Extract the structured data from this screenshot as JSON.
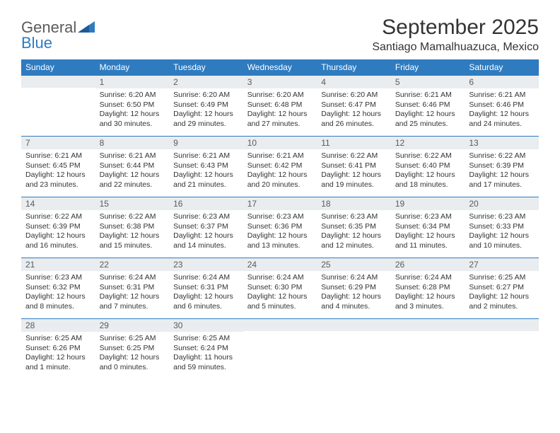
{
  "logo": {
    "word1": "General",
    "word2": "Blue"
  },
  "title": "September 2025",
  "location": "Santiago Mamalhuazuca, Mexico",
  "weekdays": [
    "Sunday",
    "Monday",
    "Tuesday",
    "Wednesday",
    "Thursday",
    "Friday",
    "Saturday"
  ],
  "colors": {
    "header_bg": "#2e7bc0",
    "header_text": "#ffffff",
    "daynum_bg": "#e9edef",
    "daynum_text": "#5a5a5a",
    "body_text": "#333333",
    "rule": "#2e7bc0"
  },
  "weeks": [
    [
      {
        "n": "",
        "sr": "",
        "ss": "",
        "dl": ""
      },
      {
        "n": "1",
        "sr": "Sunrise: 6:20 AM",
        "ss": "Sunset: 6:50 PM",
        "dl": "Daylight: 12 hours and 30 minutes."
      },
      {
        "n": "2",
        "sr": "Sunrise: 6:20 AM",
        "ss": "Sunset: 6:49 PM",
        "dl": "Daylight: 12 hours and 29 minutes."
      },
      {
        "n": "3",
        "sr": "Sunrise: 6:20 AM",
        "ss": "Sunset: 6:48 PM",
        "dl": "Daylight: 12 hours and 27 minutes."
      },
      {
        "n": "4",
        "sr": "Sunrise: 6:20 AM",
        "ss": "Sunset: 6:47 PM",
        "dl": "Daylight: 12 hours and 26 minutes."
      },
      {
        "n": "5",
        "sr": "Sunrise: 6:21 AM",
        "ss": "Sunset: 6:46 PM",
        "dl": "Daylight: 12 hours and 25 minutes."
      },
      {
        "n": "6",
        "sr": "Sunrise: 6:21 AM",
        "ss": "Sunset: 6:46 PM",
        "dl": "Daylight: 12 hours and 24 minutes."
      }
    ],
    [
      {
        "n": "7",
        "sr": "Sunrise: 6:21 AM",
        "ss": "Sunset: 6:45 PM",
        "dl": "Daylight: 12 hours and 23 minutes."
      },
      {
        "n": "8",
        "sr": "Sunrise: 6:21 AM",
        "ss": "Sunset: 6:44 PM",
        "dl": "Daylight: 12 hours and 22 minutes."
      },
      {
        "n": "9",
        "sr": "Sunrise: 6:21 AM",
        "ss": "Sunset: 6:43 PM",
        "dl": "Daylight: 12 hours and 21 minutes."
      },
      {
        "n": "10",
        "sr": "Sunrise: 6:21 AM",
        "ss": "Sunset: 6:42 PM",
        "dl": "Daylight: 12 hours and 20 minutes."
      },
      {
        "n": "11",
        "sr": "Sunrise: 6:22 AM",
        "ss": "Sunset: 6:41 PM",
        "dl": "Daylight: 12 hours and 19 minutes."
      },
      {
        "n": "12",
        "sr": "Sunrise: 6:22 AM",
        "ss": "Sunset: 6:40 PM",
        "dl": "Daylight: 12 hours and 18 minutes."
      },
      {
        "n": "13",
        "sr": "Sunrise: 6:22 AM",
        "ss": "Sunset: 6:39 PM",
        "dl": "Daylight: 12 hours and 17 minutes."
      }
    ],
    [
      {
        "n": "14",
        "sr": "Sunrise: 6:22 AM",
        "ss": "Sunset: 6:39 PM",
        "dl": "Daylight: 12 hours and 16 minutes."
      },
      {
        "n": "15",
        "sr": "Sunrise: 6:22 AM",
        "ss": "Sunset: 6:38 PM",
        "dl": "Daylight: 12 hours and 15 minutes."
      },
      {
        "n": "16",
        "sr": "Sunrise: 6:23 AM",
        "ss": "Sunset: 6:37 PM",
        "dl": "Daylight: 12 hours and 14 minutes."
      },
      {
        "n": "17",
        "sr": "Sunrise: 6:23 AM",
        "ss": "Sunset: 6:36 PM",
        "dl": "Daylight: 12 hours and 13 minutes."
      },
      {
        "n": "18",
        "sr": "Sunrise: 6:23 AM",
        "ss": "Sunset: 6:35 PM",
        "dl": "Daylight: 12 hours and 12 minutes."
      },
      {
        "n": "19",
        "sr": "Sunrise: 6:23 AM",
        "ss": "Sunset: 6:34 PM",
        "dl": "Daylight: 12 hours and 11 minutes."
      },
      {
        "n": "20",
        "sr": "Sunrise: 6:23 AM",
        "ss": "Sunset: 6:33 PM",
        "dl": "Daylight: 12 hours and 10 minutes."
      }
    ],
    [
      {
        "n": "21",
        "sr": "Sunrise: 6:23 AM",
        "ss": "Sunset: 6:32 PM",
        "dl": "Daylight: 12 hours and 8 minutes."
      },
      {
        "n": "22",
        "sr": "Sunrise: 6:24 AM",
        "ss": "Sunset: 6:31 PM",
        "dl": "Daylight: 12 hours and 7 minutes."
      },
      {
        "n": "23",
        "sr": "Sunrise: 6:24 AM",
        "ss": "Sunset: 6:31 PM",
        "dl": "Daylight: 12 hours and 6 minutes."
      },
      {
        "n": "24",
        "sr": "Sunrise: 6:24 AM",
        "ss": "Sunset: 6:30 PM",
        "dl": "Daylight: 12 hours and 5 minutes."
      },
      {
        "n": "25",
        "sr": "Sunrise: 6:24 AM",
        "ss": "Sunset: 6:29 PM",
        "dl": "Daylight: 12 hours and 4 minutes."
      },
      {
        "n": "26",
        "sr": "Sunrise: 6:24 AM",
        "ss": "Sunset: 6:28 PM",
        "dl": "Daylight: 12 hours and 3 minutes."
      },
      {
        "n": "27",
        "sr": "Sunrise: 6:25 AM",
        "ss": "Sunset: 6:27 PM",
        "dl": "Daylight: 12 hours and 2 minutes."
      }
    ],
    [
      {
        "n": "28",
        "sr": "Sunrise: 6:25 AM",
        "ss": "Sunset: 6:26 PM",
        "dl": "Daylight: 12 hours and 1 minute."
      },
      {
        "n": "29",
        "sr": "Sunrise: 6:25 AM",
        "ss": "Sunset: 6:25 PM",
        "dl": "Daylight: 12 hours and 0 minutes."
      },
      {
        "n": "30",
        "sr": "Sunrise: 6:25 AM",
        "ss": "Sunset: 6:24 PM",
        "dl": "Daylight: 11 hours and 59 minutes."
      },
      {
        "n": "",
        "sr": "",
        "ss": "",
        "dl": ""
      },
      {
        "n": "",
        "sr": "",
        "ss": "",
        "dl": ""
      },
      {
        "n": "",
        "sr": "",
        "ss": "",
        "dl": ""
      },
      {
        "n": "",
        "sr": "",
        "ss": "",
        "dl": ""
      }
    ]
  ]
}
